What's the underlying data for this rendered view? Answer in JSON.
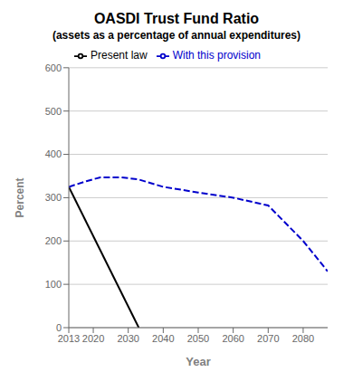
{
  "chart_data": {
    "type": "line",
    "title": "OASDI Trust Fund Ratio",
    "subtitle": "(assets as a percentage of annual expenditures)",
    "xlabel": "Year",
    "ylabel": "Percent",
    "xlim": [
      2013,
      2087
    ],
    "ylim": [
      0,
      600
    ],
    "xticks": [
      2013,
      2020,
      2030,
      2040,
      2050,
      2060,
      2070,
      2080
    ],
    "yticks": [
      0,
      100,
      200,
      300,
      400,
      500,
      600
    ],
    "grid": "y",
    "legend": "top",
    "series": [
      {
        "name": "Present law",
        "color": "#000000",
        "line_style": "solid",
        "x": [
          2013,
          2033
        ],
        "values": [
          325,
          0
        ]
      },
      {
        "name": "With this provision",
        "color": "#0000cc",
        "line_style": "dashed",
        "x": [
          2013,
          2018,
          2022,
          2028,
          2033,
          2040,
          2050,
          2060,
          2070,
          2080,
          2087
        ],
        "values": [
          325,
          338,
          347,
          347,
          342,
          325,
          312,
          300,
          282,
          200,
          130
        ]
      }
    ]
  }
}
